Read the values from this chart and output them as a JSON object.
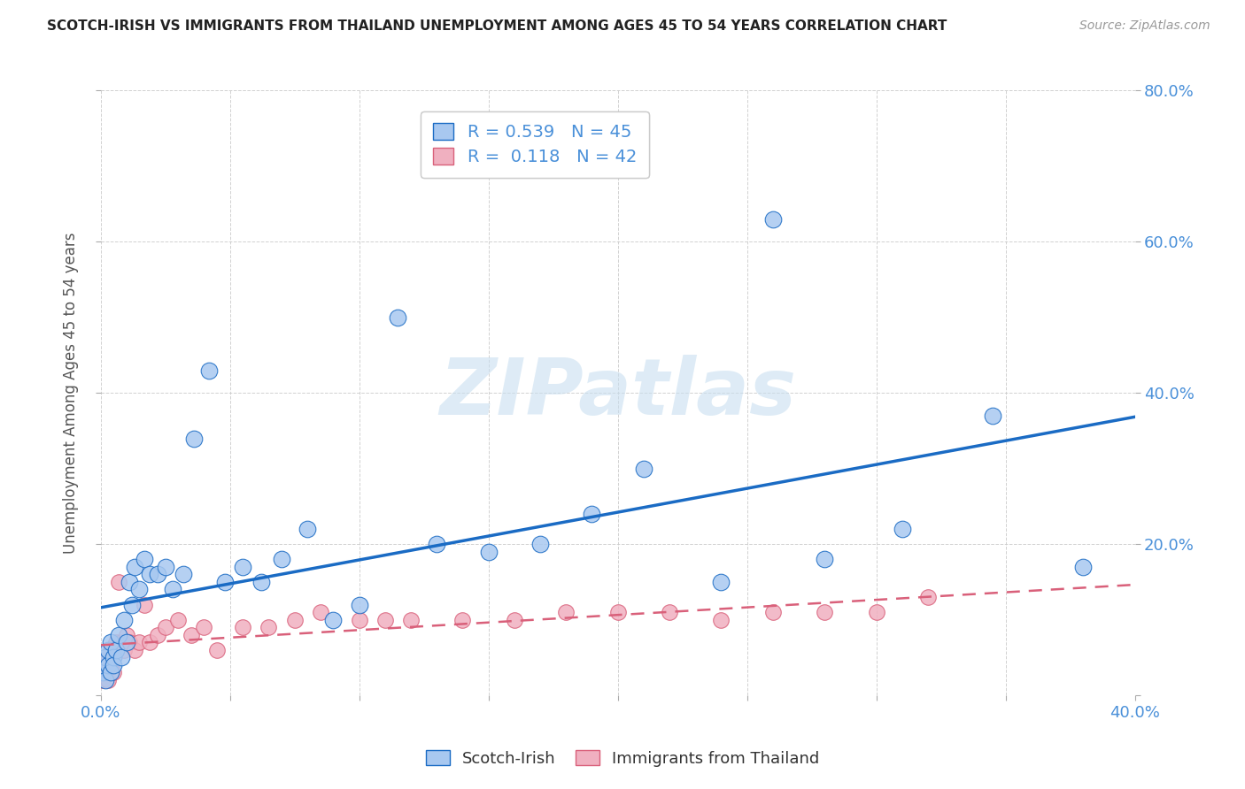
{
  "title": "SCOTCH-IRISH VS IMMIGRANTS FROM THAILAND UNEMPLOYMENT AMONG AGES 45 TO 54 YEARS CORRELATION CHART",
  "source": "Source: ZipAtlas.com",
  "ylabel": "Unemployment Among Ages 45 to 54 years",
  "xlim": [
    0.0,
    0.4
  ],
  "ylim": [
    0.0,
    0.8
  ],
  "xticks": [
    0.0,
    0.05,
    0.1,
    0.15,
    0.2,
    0.25,
    0.3,
    0.35,
    0.4
  ],
  "yticks": [
    0.0,
    0.2,
    0.4,
    0.6,
    0.8
  ],
  "scotch_irish_x": [
    0.001,
    0.002,
    0.002,
    0.003,
    0.003,
    0.004,
    0.004,
    0.005,
    0.005,
    0.006,
    0.007,
    0.008,
    0.009,
    0.01,
    0.011,
    0.012,
    0.013,
    0.015,
    0.017,
    0.019,
    0.022,
    0.025,
    0.028,
    0.032,
    0.036,
    0.042,
    0.048,
    0.055,
    0.062,
    0.07,
    0.08,
    0.09,
    0.1,
    0.115,
    0.13,
    0.15,
    0.17,
    0.19,
    0.21,
    0.24,
    0.26,
    0.28,
    0.31,
    0.345,
    0.38
  ],
  "scotch_irish_y": [
    0.03,
    0.05,
    0.02,
    0.04,
    0.06,
    0.03,
    0.07,
    0.05,
    0.04,
    0.06,
    0.08,
    0.05,
    0.1,
    0.07,
    0.15,
    0.12,
    0.17,
    0.14,
    0.18,
    0.16,
    0.16,
    0.17,
    0.14,
    0.16,
    0.34,
    0.43,
    0.15,
    0.17,
    0.15,
    0.18,
    0.22,
    0.1,
    0.12,
    0.5,
    0.2,
    0.19,
    0.2,
    0.24,
    0.3,
    0.15,
    0.63,
    0.18,
    0.22,
    0.37,
    0.17
  ],
  "thailand_x": [
    0.001,
    0.002,
    0.002,
    0.003,
    0.003,
    0.004,
    0.004,
    0.005,
    0.005,
    0.006,
    0.007,
    0.008,
    0.009,
    0.01,
    0.011,
    0.013,
    0.015,
    0.017,
    0.019,
    0.022,
    0.025,
    0.03,
    0.035,
    0.04,
    0.045,
    0.055,
    0.065,
    0.075,
    0.085,
    0.1,
    0.11,
    0.12,
    0.14,
    0.16,
    0.18,
    0.2,
    0.22,
    0.24,
    0.26,
    0.28,
    0.3,
    0.32
  ],
  "thailand_y": [
    0.02,
    0.04,
    0.03,
    0.05,
    0.02,
    0.04,
    0.06,
    0.03,
    0.05,
    0.07,
    0.15,
    0.07,
    0.06,
    0.08,
    0.07,
    0.06,
    0.07,
    0.12,
    0.07,
    0.08,
    0.09,
    0.1,
    0.08,
    0.09,
    0.06,
    0.09,
    0.09,
    0.1,
    0.11,
    0.1,
    0.1,
    0.1,
    0.1,
    0.1,
    0.11,
    0.11,
    0.11,
    0.1,
    0.11,
    0.11,
    0.11,
    0.13
  ],
  "scotch_line_color": "#1a6bc4",
  "thailand_line_color": "#d9607a",
  "scotch_scatter_facecolor": "#a8c8f0",
  "thailand_scatter_facecolor": "#f0b0c0",
  "background_color": "#ffffff",
  "grid_color": "#cccccc",
  "right_tick_color": "#4a90d9",
  "title_color": "#222222",
  "legend1_label1": "R = 0.539   N = 45",
  "legend1_label2": "R =  0.118   N = 42",
  "legend2_label1": "Scotch-Irish",
  "legend2_label2": "Immigrants from Thailand",
  "watermark": "ZIPatlas",
  "watermark_color": "#c8dff0"
}
